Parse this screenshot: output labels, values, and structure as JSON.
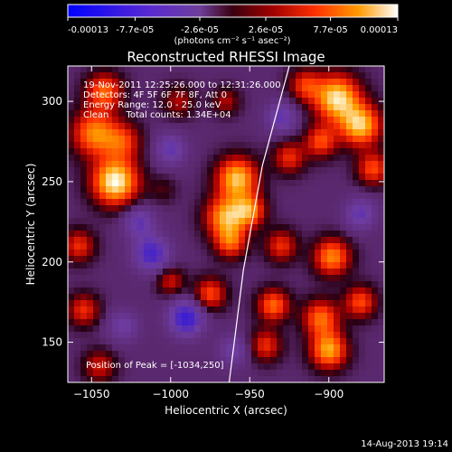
{
  "chart_data": {
    "type": "heatmap",
    "title": "Reconstructed RHESSI Image",
    "xlabel": "Heliocentric X (arcsec)",
    "ylabel": "Heliocentric Y (arcsec)",
    "xlim": [
      -1065,
      -865
    ],
    "ylim": [
      125,
      322
    ],
    "x_ticks": [
      -1050,
      -1000,
      -950,
      -900
    ],
    "y_ticks": [
      150,
      200,
      250,
      300
    ],
    "colorbar": {
      "ticks": [
        "-0.00013",
        "-7.7e-05",
        "-2.6e-05",
        "2.6e-05",
        "7.7e-05",
        "0.00013"
      ],
      "min": -0.00013,
      "max": 0.00013,
      "units_label": "(photons cm⁻² s⁻¹ asec⁻²)"
    },
    "annotations": [
      "19-Nov-2011 12:25:26.000 to 12:31:26.000",
      "Detectors: 4F 5F 6F 7F 8F, Att 0",
      "Energy Range: 12.0 - 25.0 keV",
      "Clean      Total counts: 1.34E+04"
    ],
    "peak_label": "Position of Peak = [-1034,250]",
    "peak": {
      "x": -1034,
      "y": 250
    },
    "blobs": [
      {
        "x": -1035,
        "y": 250,
        "v": 0.00013,
        "r": 10
      },
      {
        "x": -1048,
        "y": 280,
        "v": 9e-05,
        "r": 10
      },
      {
        "x": -1042,
        "y": 306,
        "v": 8e-05,
        "r": 8
      },
      {
        "x": -1030,
        "y": 275,
        "v": 6e-05,
        "r": 8
      },
      {
        "x": -958,
        "y": 252,
        "v": 0.00011,
        "r": 9
      },
      {
        "x": -965,
        "y": 228,
        "v": 0.0001,
        "r": 9
      },
      {
        "x": -950,
        "y": 232,
        "v": 8e-05,
        "r": 7
      },
      {
        "x": -962,
        "y": 212,
        "v": 7e-05,
        "r": 7
      },
      {
        "x": -895,
        "y": 302,
        "v": 0.00012,
        "r": 10
      },
      {
        "x": -880,
        "y": 285,
        "v": 0.00011,
        "r": 9
      },
      {
        "x": -905,
        "y": 275,
        "v": 7e-05,
        "r": 7
      },
      {
        "x": -925,
        "y": 265,
        "v": 6e-05,
        "r": 7
      },
      {
        "x": -872,
        "y": 258,
        "v": 7e-05,
        "r": 7
      },
      {
        "x": -915,
        "y": 310,
        "v": 6e-05,
        "r": 7
      },
      {
        "x": -898,
        "y": 203,
        "v": 9e-05,
        "r": 8
      },
      {
        "x": -905,
        "y": 165,
        "v": 8e-05,
        "r": 8
      },
      {
        "x": -900,
        "y": 145,
        "v": 0.0001,
        "r": 8
      },
      {
        "x": -880,
        "y": 175,
        "v": 7e-05,
        "r": 7
      },
      {
        "x": -935,
        "y": 173,
        "v": 8e-05,
        "r": 7
      },
      {
        "x": -930,
        "y": 210,
        "v": 6e-05,
        "r": 7
      },
      {
        "x": -940,
        "y": 148,
        "v": 6e-05,
        "r": 7
      },
      {
        "x": -975,
        "y": 180,
        "v": 7e-05,
        "r": 7
      },
      {
        "x": -1000,
        "y": 188,
        "v": 5e-05,
        "r": 6
      },
      {
        "x": -1058,
        "y": 210,
        "v": 6e-05,
        "r": 7
      },
      {
        "x": -1055,
        "y": 170,
        "v": 6e-05,
        "r": 7
      },
      {
        "x": -1045,
        "y": 135,
        "v": 5e-05,
        "r": 7
      },
      {
        "x": -995,
        "y": 300,
        "v": 4e-05,
        "r": 7
      },
      {
        "x": -965,
        "y": 300,
        "v": 4e-05,
        "r": 6
      },
      {
        "x": -1005,
        "y": 245,
        "v": 2e-05,
        "r": 6
      },
      {
        "x": -1012,
        "y": 205,
        "v": -7e-05,
        "r": 8
      },
      {
        "x": -990,
        "y": 165,
        "v": -8e-05,
        "r": 8
      },
      {
        "x": -1020,
        "y": 225,
        "v": -5e-05,
        "r": 7
      },
      {
        "x": -1000,
        "y": 270,
        "v": -5e-05,
        "r": 7
      },
      {
        "x": -930,
        "y": 290,
        "v": -5e-05,
        "r": 7
      },
      {
        "x": -880,
        "y": 230,
        "v": -5e-05,
        "r": 7
      },
      {
        "x": -960,
        "y": 145,
        "v": -4e-05,
        "r": 7
      },
      {
        "x": -1030,
        "y": 160,
        "v": -4e-05,
        "r": 7
      }
    ],
    "limb_curve": [
      {
        "x": -963,
        "y": 125
      },
      {
        "x": -954,
        "y": 195
      },
      {
        "x": -942,
        "y": 260
      },
      {
        "x": -925,
        "y": 322
      }
    ]
  },
  "footer": {
    "date_stamp": "14-Aug-2013 19:14"
  }
}
